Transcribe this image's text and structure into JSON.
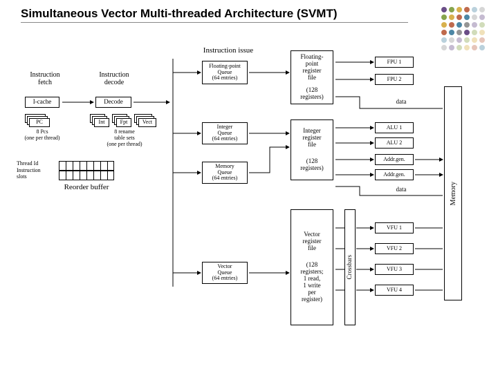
{
  "title": "Simultaneous Vector Multi-threaded Architecture (SVMT)",
  "dots": {
    "colors": [
      "#5a3b7a",
      "#7a9b3a",
      "#d4a93a",
      "#b85a3a",
      "#3a7a9b",
      "#8a8a8a"
    ]
  },
  "headers": {
    "issue": "Instruction issue",
    "fetch": "Instruction\nfetch",
    "decode": "Instruction\ndecode"
  },
  "boxes": {
    "icache": "I-cache",
    "decode": "Decode",
    "pc": "PC",
    "int": "Int",
    "fpt": "Fpt",
    "vect": "Vect",
    "fpq": "Floating-point\nQueue\n(64 entries)",
    "intq": "Integer\nQueue\n(64 entries)",
    "memq": "Memory\nQueue\n(64 entries)",
    "vecq": "Vector\nQueue\n(64 entries)",
    "fprf": "Floating-\npoint\nregister\nfile",
    "fprf_sub": "(128\nregisters)",
    "intrf": "Integer\nregister\nfile",
    "intrf_sub": "(128\nregisters)",
    "vecrf": "Vector\nregister\nfile",
    "vecrf_sub": "(128\nregisters;\n1 read,\n1 write\nper\nregister)",
    "fpu1": "FPU 1",
    "fpu2": "FPU 2",
    "alu1": "ALU 1",
    "alu2": "ALU 2",
    "ag1": "Addr.gen.",
    "ag2": "Addr.gen.",
    "vfu1": "VFU 1",
    "vfu2": "VFU 2",
    "vfu3": "VFU 3",
    "vfu4": "VFU 4",
    "memory": "Memory",
    "crossbars": "Crossbars"
  },
  "labels": {
    "pcs": "8 Pcs\n(one per thread)",
    "rename": "8 rename\ntable sets\n(one per thread)",
    "tid": "Thread Id",
    "islots": "Instruction\nslots",
    "reorder": "Reorder buffer",
    "data1": "data",
    "data2": "data"
  }
}
